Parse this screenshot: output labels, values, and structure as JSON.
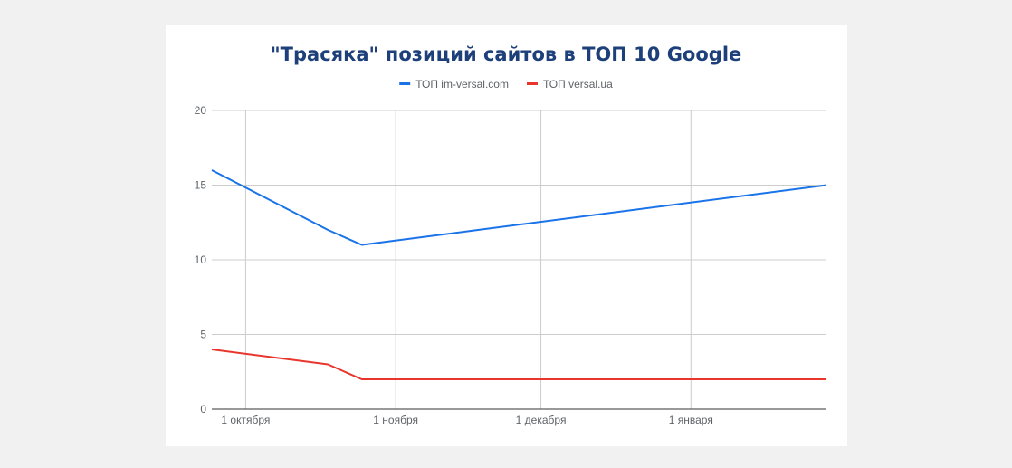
{
  "colors": {
    "page_background": "#f1f1f1",
    "card_background": "#ffffff",
    "title": "#1d3f7a",
    "gridline": "#cccccc",
    "axis": "#333333",
    "series_1": "#1a73e8",
    "series_2": "#e8362c"
  },
  "chart_data": {
    "type": "line",
    "title": "\"Трасяка\" позиций сайтов в ТОП 10 Google",
    "xlabel": "",
    "ylabel": "",
    "x_type": "date",
    "xlim": [
      "2023-09-24",
      "2024-01-29"
    ],
    "ylim": [
      0,
      20
    ],
    "y_ticks": [
      0,
      5,
      10,
      15,
      20
    ],
    "x_ticks": [
      {
        "date": "2023-10-01",
        "label": "1 октября"
      },
      {
        "date": "2023-11-01",
        "label": "1 ноября"
      },
      {
        "date": "2023-12-01",
        "label": "1 декабря"
      },
      {
        "date": "2024-01-01",
        "label": "1 января"
      }
    ],
    "grid": true,
    "legend": "top-center",
    "series": [
      {
        "name": "ТОП im-versal.com",
        "color": "#1a73e8",
        "points": [
          {
            "x": "2023-09-24",
            "y": 16
          },
          {
            "x": "2023-10-18",
            "y": 12
          },
          {
            "x": "2023-10-25",
            "y": 11
          },
          {
            "x": "2024-01-29",
            "y": 15
          }
        ]
      },
      {
        "name": "ТОП versal.ua",
        "color": "#e8362c",
        "points": [
          {
            "x": "2023-09-24",
            "y": 4
          },
          {
            "x": "2023-10-18",
            "y": 3
          },
          {
            "x": "2023-10-25",
            "y": 2
          },
          {
            "x": "2024-01-29",
            "y": 2
          }
        ]
      }
    ]
  }
}
